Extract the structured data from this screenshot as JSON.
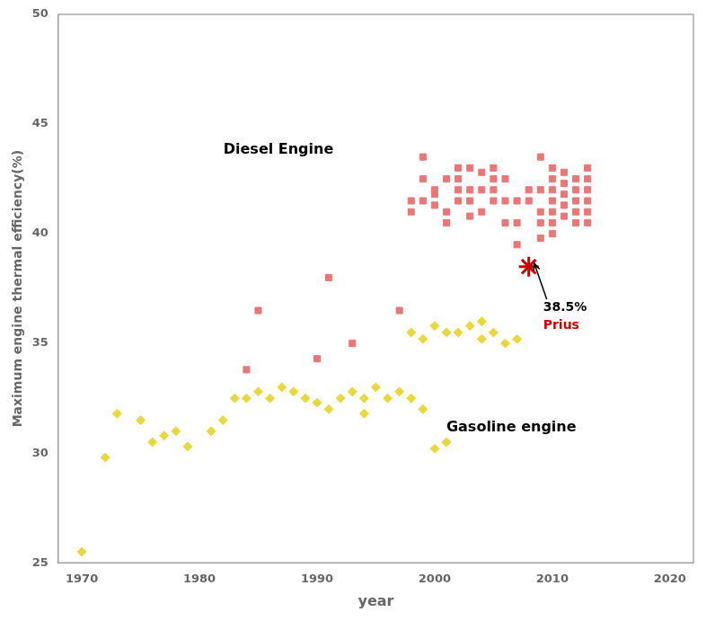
{
  "chart_data": {
    "type": "scatter",
    "xlabel": "year",
    "ylabel": "Maximum engine thermal efficiency(%)",
    "xlim": [
      1968,
      2022
    ],
    "ylim": [
      25,
      50
    ],
    "xticks": [
      1970,
      1980,
      1990,
      2000,
      2010,
      2020
    ],
    "yticks": [
      25,
      30,
      35,
      40,
      45,
      50
    ],
    "grid": false,
    "series": [
      {
        "name": "Diesel Engine",
        "color": "#E87878",
        "marker": "square",
        "x": [
          1984,
          1985,
          1990,
          1991,
          1993,
          1997,
          1998,
          1998,
          1999,
          1999,
          1999,
          2000,
          2000,
          2000,
          2001,
          2001,
          2001,
          2002,
          2002,
          2002,
          2002,
          2003,
          2003,
          2003,
          2003,
          2004,
          2004,
          2004,
          2005,
          2005,
          2005,
          2005,
          2006,
          2006,
          2006,
          2007,
          2007,
          2007,
          2008,
          2008,
          2009,
          2009,
          2009,
          2009,
          2009,
          2010,
          2010,
          2010,
          2010,
          2010,
          2010,
          2010,
          2011,
          2011,
          2011,
          2011,
          2011,
          2012,
          2012,
          2012,
          2012,
          2012,
          2013,
          2013,
          2013,
          2013,
          2013,
          2013
        ],
        "values": [
          33.8,
          36.5,
          34.3,
          38.0,
          35.0,
          36.5,
          41.0,
          41.5,
          42.5,
          43.5,
          41.5,
          42.0,
          41.8,
          41.3,
          42.5,
          41.0,
          40.5,
          43.0,
          42.5,
          42.0,
          41.5,
          43.0,
          42.0,
          41.5,
          40.8,
          42.8,
          42.0,
          41.0,
          43.0,
          42.5,
          42.0,
          41.5,
          42.5,
          41.5,
          40.5,
          41.5,
          40.5,
          39.5,
          42.0,
          41.5,
          43.5,
          42.0,
          41.0,
          40.5,
          39.8,
          43.0,
          42.5,
          42.0,
          41.5,
          41.0,
          40.5,
          40.0,
          42.8,
          42.3,
          41.8,
          41.3,
          40.8,
          42.5,
          42.0,
          41.5,
          41.0,
          40.5,
          43.0,
          42.5,
          42.0,
          41.5,
          41.0,
          40.5
        ]
      },
      {
        "name": "Gasoline engine",
        "color": "#E8D840",
        "marker": "diamond",
        "x": [
          1970,
          1972,
          1973,
          1975,
          1976,
          1977,
          1978,
          1979,
          1981,
          1982,
          1983,
          1984,
          1985,
          1986,
          1987,
          1988,
          1989,
          1990,
          1991,
          1992,
          1993,
          1994,
          1994,
          1995,
          1996,
          1997,
          1998,
          1999,
          2000,
          2001,
          1998,
          1999,
          2000,
          2001,
          2002,
          2003,
          2004,
          2004,
          2005,
          2006,
          2007
        ],
        "values": [
          25.5,
          29.8,
          31.8,
          31.5,
          30.5,
          30.8,
          31.0,
          30.3,
          31.0,
          31.5,
          32.5,
          32.5,
          32.8,
          32.5,
          33.0,
          32.8,
          32.5,
          32.3,
          32.0,
          32.5,
          32.8,
          32.5,
          31.8,
          33.0,
          32.5,
          32.8,
          32.5,
          32.0,
          30.2,
          30.5,
          35.5,
          35.2,
          35.8,
          35.5,
          35.5,
          35.8,
          36.0,
          35.2,
          35.5,
          35.0,
          35.2
        ]
      },
      {
        "name": "Prius",
        "color": "#CC0000",
        "marker": "star",
        "x": [
          2008
        ],
        "values": [
          38.5
        ],
        "value_labels": [
          "38.5%"
        ]
      }
    ]
  }
}
